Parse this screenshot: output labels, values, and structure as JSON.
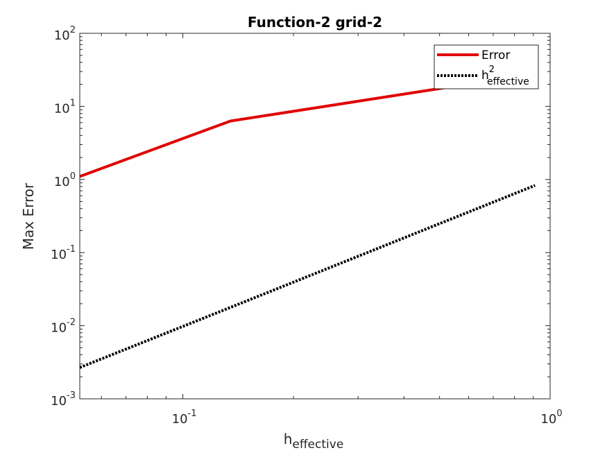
{
  "chart_data": {
    "type": "line",
    "title": "Function-2 grid-2",
    "xlabel": {
      "base": "h",
      "sub": "effective"
    },
    "ylabel": "Max Error",
    "xscale": "log",
    "yscale": "log",
    "xlim": [
      0.0524,
      1
    ],
    "ylim": [
      0.001,
      100
    ],
    "grid": false,
    "legend_position": "top-right",
    "x_ticks": [
      {
        "value": 0.1,
        "base": "10",
        "exp": "-1"
      },
      {
        "value": 1,
        "base": "10",
        "exp": "0"
      }
    ],
    "y_ticks": [
      {
        "value": 0.001,
        "base": "10",
        "exp": "-3"
      },
      {
        "value": 0.01,
        "base": "10",
        "exp": "-2"
      },
      {
        "value": 0.1,
        "base": "10",
        "exp": "-1"
      },
      {
        "value": 1,
        "base": "10",
        "exp": "0"
      },
      {
        "value": 10,
        "base": "10",
        "exp": "1"
      },
      {
        "value": 100,
        "base": "10",
        "exp": "2"
      }
    ],
    "series": [
      {
        "name": "Error",
        "legend": {
          "base": "Error",
          "sup": "",
          "sub": ""
        },
        "color": "#e00000",
        "style": "solid",
        "x": [
          0.0524,
          0.1348,
          0.91
        ],
        "y": [
          1.1,
          6.3,
          28
        ]
      },
      {
        "name": "h2effective",
        "legend": {
          "base": "h",
          "sup": "2",
          "sub": "effective"
        },
        "color": "#000000",
        "style": "dotted",
        "x": [
          0.0524,
          0.1348,
          0.91
        ],
        "y": [
          0.00268,
          0.0178,
          0.83
        ]
      }
    ]
  }
}
